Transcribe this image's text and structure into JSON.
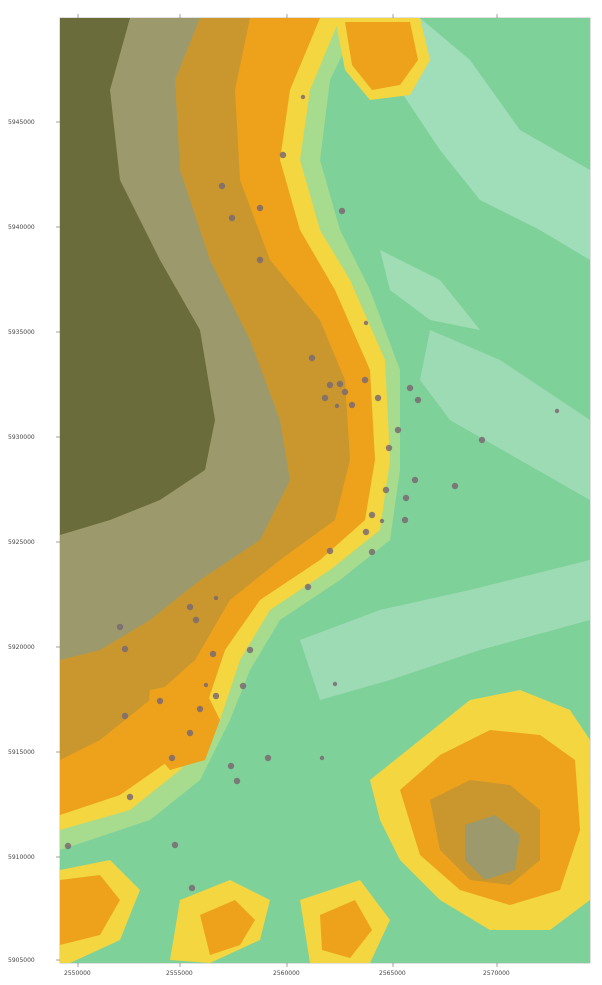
{
  "map": {
    "axes": {
      "y_ticks": [
        "5945000",
        "5940000",
        "5935000",
        "5930000",
        "5925000",
        "5920000",
        "5915000",
        "5910000",
        "5905000"
      ],
      "x_ticks": [
        "2550000",
        "2555000",
        "2560000",
        "2565000",
        "2570000"
      ]
    },
    "colors": {
      "high_olive": "#6b6c3b",
      "mid_olive": "#9c9a6c",
      "brown_orange": "#c9972e",
      "orange": "#eea21b",
      "yellow": "#f3d640",
      "light_green": "#9edb9a",
      "green": "#6fcf94",
      "pale_green": "#a9e0c0",
      "site_dot": "#7a6a72"
    },
    "sites": [
      {
        "name": "site"
      },
      {
        "name": "site"
      },
      {
        "name": "site"
      },
      {
        "name": "site"
      },
      {
        "name": "site"
      },
      {
        "name": "site"
      },
      {
        "name": "site"
      },
      {
        "name": "site"
      },
      {
        "name": "site"
      },
      {
        "name": "site"
      },
      {
        "name": "site"
      },
      {
        "name": "site"
      },
      {
        "name": "site"
      },
      {
        "name": "site"
      },
      {
        "name": "site"
      },
      {
        "name": "site"
      },
      {
        "name": "site"
      },
      {
        "name": "site"
      },
      {
        "name": "site"
      },
      {
        "name": "site"
      },
      {
        "name": "site"
      },
      {
        "name": "site"
      },
      {
        "name": "site"
      },
      {
        "name": "site"
      },
      {
        "name": "site"
      },
      {
        "name": "site"
      },
      {
        "name": "site"
      },
      {
        "name": "site"
      },
      {
        "name": "site"
      },
      {
        "name": "site"
      },
      {
        "name": "site"
      },
      {
        "name": "site"
      },
      {
        "name": "site"
      },
      {
        "name": "site"
      },
      {
        "name": "site"
      },
      {
        "name": "site"
      },
      {
        "name": "site"
      },
      {
        "name": "site"
      },
      {
        "name": "site"
      },
      {
        "name": "site"
      },
      {
        "name": "site"
      },
      {
        "name": "site"
      },
      {
        "name": "site"
      },
      {
        "name": "site"
      },
      {
        "name": "site"
      },
      {
        "name": "site"
      },
      {
        "name": "site"
      },
      {
        "name": "site"
      }
    ]
  }
}
